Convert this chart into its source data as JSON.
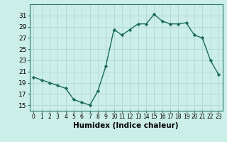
{
  "x": [
    0,
    1,
    2,
    3,
    4,
    5,
    6,
    7,
    8,
    9,
    10,
    11,
    12,
    13,
    14,
    15,
    16,
    17,
    18,
    19,
    20,
    21,
    22,
    23
  ],
  "y": [
    20.0,
    19.5,
    19.0,
    18.5,
    18.0,
    16.0,
    15.5,
    15.0,
    17.5,
    22.0,
    28.5,
    27.5,
    28.5,
    29.5,
    29.5,
    31.2,
    30.0,
    29.5,
    29.5,
    29.7,
    27.5,
    27.0,
    23.0,
    20.5
  ],
  "line_color": "#1a6b5a",
  "marker": "D",
  "marker_size": 2.2,
  "line_width": 1.0,
  "bg_color": "#cceee8",
  "grid_color": "#aad4cc",
  "xlabel": "Humidex (Indice chaleur)",
  "xlabel_fontsize": 7.5,
  "xlabel_bold": true,
  "ylim": [
    14,
    33
  ],
  "xlim": [
    -0.5,
    23.5
  ],
  "yticks": [
    15,
    17,
    19,
    21,
    23,
    25,
    27,
    29,
    31
  ],
  "xtick_labels": [
    "0",
    "1",
    "2",
    "3",
    "4",
    "5",
    "6",
    "7",
    "8",
    "9",
    "10",
    "11",
    "12",
    "13",
    "14",
    "15",
    "16",
    "17",
    "18",
    "19",
    "20",
    "21",
    "22",
    "23"
  ],
  "ytick_fontsize": 6.5,
  "xtick_fontsize": 5.5,
  "spine_color": "#2a7a6a"
}
